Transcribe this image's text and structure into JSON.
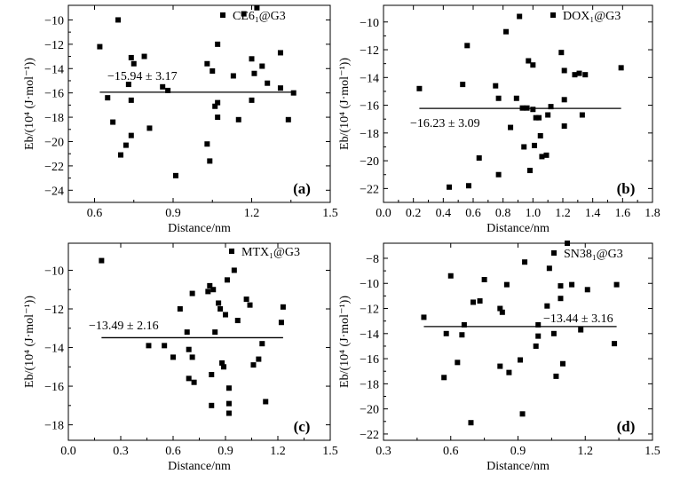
{
  "figure_title": "",
  "chart_data": [
    {
      "type": "scatter",
      "panel": "(a)",
      "legend": "CE6₁@G3",
      "annotation": "−15.94 ± 3.17",
      "mean": -15.94,
      "xlabel": "Distance/nm",
      "ylabel": "Eb/(10⁴ (J·mol⁻¹))",
      "xlim": [
        0.5,
        1.5
      ],
      "ylim": [
        -25,
        -8.8
      ],
      "xticks": [
        0.6,
        0.9,
        1.2,
        1.5
      ],
      "xtick_labels": [
        "0.6",
        "0.9",
        "1.2",
        "1.5"
      ],
      "yticks": [
        -24,
        -22,
        -20,
        -18,
        -16,
        -14,
        -12,
        -10
      ],
      "ytick_labels": [
        "−24",
        "−22",
        "−20",
        "−18",
        "−16",
        "−14",
        "−12",
        "−10"
      ],
      "points": [
        [
          0.62,
          -12.2
        ],
        [
          0.65,
          -16.4
        ],
        [
          0.67,
          -18.4
        ],
        [
          0.69,
          -10.0
        ],
        [
          0.7,
          -21.1
        ],
        [
          0.72,
          -20.3
        ],
        [
          0.73,
          -15.3
        ],
        [
          0.74,
          -13.1
        ],
        [
          0.75,
          -13.6
        ],
        [
          0.74,
          -16.6
        ],
        [
          0.74,
          -19.5
        ],
        [
          0.79,
          -13.0
        ],
        [
          0.81,
          -18.9
        ],
        [
          0.86,
          -15.5
        ],
        [
          0.88,
          -15.8
        ],
        [
          0.91,
          -22.8
        ],
        [
          1.03,
          -20.2
        ],
        [
          1.04,
          -21.6
        ],
        [
          1.03,
          -13.6
        ],
        [
          1.05,
          -14.2
        ],
        [
          1.07,
          -12.0
        ],
        [
          1.06,
          -17.1
        ],
        [
          1.07,
          -16.8
        ],
        [
          1.07,
          -18.0
        ],
        [
          1.13,
          -14.6
        ],
        [
          1.15,
          -18.2
        ],
        [
          1.17,
          -9.5
        ],
        [
          1.2,
          -13.2
        ],
        [
          1.2,
          -16.6
        ],
        [
          1.21,
          -14.4
        ],
        [
          1.22,
          -9.0
        ],
        [
          1.24,
          -13.8
        ],
        [
          1.26,
          -15.2
        ],
        [
          1.31,
          -12.7
        ],
        [
          1.31,
          -15.6
        ],
        [
          1.34,
          -18.2
        ],
        [
          1.36,
          -16.0
        ]
      ]
    },
    {
      "type": "scatter",
      "panel": "(b)",
      "legend": "DOX₁@G3",
      "annotation": "−16.23 ± 3.09",
      "mean": -16.23,
      "xlabel": "Distance/nm",
      "ylabel": "Eb/(10⁴ (J·mol⁻¹))",
      "xlim": [
        0.0,
        1.8
      ],
      "ylim": [
        -23,
        -8.8
      ],
      "xticks": [
        0.0,
        0.2,
        0.4,
        0.6,
        0.8,
        1.0,
        1.2,
        1.4,
        1.6,
        1.8
      ],
      "xtick_labels": [
        "0.0",
        "0.2",
        "0.4",
        "0.6",
        "0.8",
        "1.0",
        "1.2",
        "1.4",
        "1.6",
        "1.8"
      ],
      "yticks": [
        -22,
        -20,
        -18,
        -16,
        -14,
        -12,
        -10
      ],
      "ytick_labels": [
        "−22",
        "−20",
        "−18",
        "−16",
        "−14",
        "−12",
        "−10"
      ],
      "points": [
        [
          0.24,
          -14.8
        ],
        [
          0.44,
          -21.9
        ],
        [
          0.53,
          -14.5
        ],
        [
          0.56,
          -11.7
        ],
        [
          0.57,
          -21.8
        ],
        [
          0.64,
          -19.8
        ],
        [
          0.75,
          -14.6
        ],
        [
          0.77,
          -15.5
        ],
        [
          0.77,
          -21.0
        ],
        [
          0.82,
          -10.7
        ],
        [
          0.85,
          -17.6
        ],
        [
          0.89,
          -15.5
        ],
        [
          0.91,
          -9.6
        ],
        [
          0.93,
          -16.2
        ],
        [
          0.94,
          -19.0
        ],
        [
          0.96,
          -16.2
        ],
        [
          0.97,
          -12.8
        ],
        [
          0.98,
          -20.7
        ],
        [
          1.0,
          -13.1
        ],
        [
          1.0,
          -16.3
        ],
        [
          1.02,
          -16.9
        ],
        [
          1.01,
          -18.9
        ],
        [
          1.04,
          -16.9
        ],
        [
          1.05,
          -18.2
        ],
        [
          1.06,
          -19.7
        ],
        [
          1.09,
          -19.6
        ],
        [
          1.1,
          -16.7
        ],
        [
          1.12,
          -16.1
        ],
        [
          1.19,
          -12.2
        ],
        [
          1.21,
          -15.6
        ],
        [
          1.21,
          -17.5
        ],
        [
          1.21,
          -13.5
        ],
        [
          1.28,
          -13.8
        ],
        [
          1.31,
          -13.7
        ],
        [
          1.35,
          -13.8
        ],
        [
          1.33,
          -16.7
        ],
        [
          1.59,
          -13.3
        ]
      ]
    },
    {
      "type": "scatter",
      "panel": "(c)",
      "legend": "MTX₁@G3",
      "annotation": "−13.49 ± 2.16",
      "mean": -13.49,
      "xlabel": "Distance/nm",
      "ylabel": "Eb/(10⁴ (J·mol⁻¹))",
      "xlim": [
        0.0,
        1.5
      ],
      "ylim": [
        -18.8,
        -8.6
      ],
      "xticks": [
        0.0,
        0.3,
        0.6,
        0.9,
        1.2,
        1.5
      ],
      "xtick_labels": [
        "0.0",
        "0.3",
        "0.6",
        "0.9",
        "1.2",
        "1.5"
      ],
      "yticks": [
        -18,
        -16,
        -14,
        -12,
        -10
      ],
      "ytick_labels": [
        "−18",
        "−16",
        "−14",
        "−12",
        "−10"
      ],
      "points": [
        [
          0.19,
          -9.5
        ],
        [
          0.46,
          -13.9
        ],
        [
          0.55,
          -13.9
        ],
        [
          0.6,
          -14.5
        ],
        [
          0.64,
          -12.0
        ],
        [
          0.68,
          -13.2
        ],
        [
          0.69,
          -14.1
        ],
        [
          0.69,
          -15.6
        ],
        [
          0.71,
          -11.2
        ],
        [
          0.71,
          -14.5
        ],
        [
          0.72,
          -15.8
        ],
        [
          0.8,
          -11.1
        ],
        [
          0.81,
          -10.8
        ],
        [
          0.82,
          -15.4
        ],
        [
          0.82,
          -17.0
        ],
        [
          0.83,
          -11.0
        ],
        [
          0.84,
          -13.2
        ],
        [
          0.86,
          -11.7
        ],
        [
          0.87,
          -12.0
        ],
        [
          0.88,
          -14.8
        ],
        [
          0.89,
          -15.0
        ],
        [
          0.9,
          -12.3
        ],
        [
          0.91,
          -10.5
        ],
        [
          0.92,
          -16.1
        ],
        [
          0.92,
          -16.9
        ],
        [
          0.92,
          -17.4
        ],
        [
          0.95,
          -10.0
        ],
        [
          0.97,
          -12.6
        ],
        [
          1.02,
          -11.5
        ],
        [
          1.04,
          -11.8
        ],
        [
          1.06,
          -14.9
        ],
        [
          1.09,
          -14.6
        ],
        [
          1.11,
          -13.8
        ],
        [
          1.13,
          -16.8
        ],
        [
          1.22,
          -12.7
        ],
        [
          1.23,
          -11.9
        ]
      ]
    },
    {
      "type": "scatter",
      "panel": "(d)",
      "legend": "SN38₁@G3",
      "annotation": "−13.44 ± 3.16",
      "mean": -13.44,
      "xlabel": "Distance/nm",
      "ylabel": "Eb/(10⁴ (J·mol⁻¹))",
      "xlim": [
        0.3,
        1.5
      ],
      "ylim": [
        -22.5,
        -6.8
      ],
      "xticks": [
        0.3,
        0.6,
        0.9,
        1.2,
        1.5
      ],
      "xtick_labels": [
        "0.3",
        "0.6",
        "0.9",
        "1.2",
        "1.5"
      ],
      "yticks": [
        -22,
        -20,
        -18,
        -16,
        -14,
        -12,
        -10,
        -8
      ],
      "ytick_labels": [
        "−22",
        "−20",
        "−18",
        "−16",
        "−14",
        "−12",
        "−10",
        "−8"
      ],
      "points": [
        [
          0.48,
          -12.7
        ],
        [
          0.57,
          -17.5
        ],
        [
          0.58,
          -14.0
        ],
        [
          0.6,
          -9.4
        ],
        [
          0.63,
          -16.3
        ],
        [
          0.65,
          -14.1
        ],
        [
          0.66,
          -13.3
        ],
        [
          0.69,
          -21.1
        ],
        [
          0.7,
          -11.5
        ],
        [
          0.73,
          -11.4
        ],
        [
          0.75,
          -9.7
        ],
        [
          0.82,
          -12.0
        ],
        [
          0.82,
          -16.6
        ],
        [
          0.83,
          -12.3
        ],
        [
          0.85,
          -10.1
        ],
        [
          0.86,
          -17.1
        ],
        [
          0.91,
          -16.1
        ],
        [
          0.92,
          -20.4
        ],
        [
          0.93,
          -8.3
        ],
        [
          0.98,
          -15.0
        ],
        [
          0.99,
          -14.2
        ],
        [
          0.99,
          -13.3
        ],
        [
          1.03,
          -11.8
        ],
        [
          1.04,
          -8.8
        ],
        [
          1.06,
          -14.0
        ],
        [
          1.07,
          -17.4
        ],
        [
          1.09,
          -10.2
        ],
        [
          1.09,
          -11.2
        ],
        [
          1.1,
          -16.4
        ],
        [
          1.12,
          -6.8
        ],
        [
          1.14,
          -10.1
        ],
        [
          1.18,
          -13.7
        ],
        [
          1.21,
          -10.5
        ],
        [
          1.33,
          -14.8
        ],
        [
          1.34,
          -10.1
        ]
      ]
    }
  ]
}
